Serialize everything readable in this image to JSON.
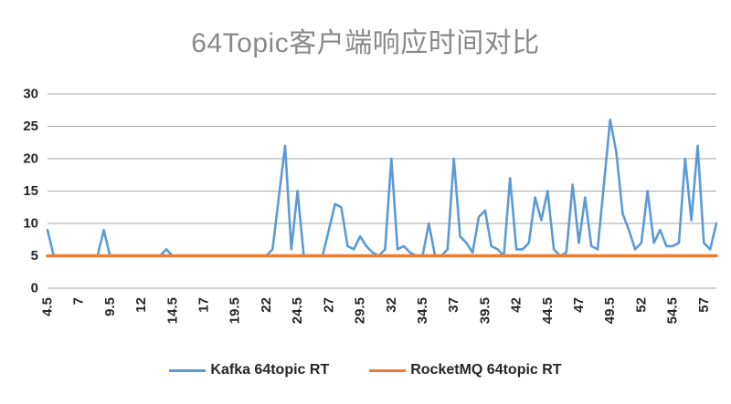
{
  "chart_data": {
    "type": "line",
    "title": "64Topic客户端响应时间对比",
    "xlabel": "",
    "ylabel": "",
    "ylim": [
      0,
      30
    ],
    "y_ticks": [
      0,
      5,
      10,
      15,
      20,
      25,
      30
    ],
    "grid": "horizontal-only",
    "gridline_color": "#A6A6A6",
    "legend_position": "bottom",
    "x_start": 4.5,
    "x_step": 0.5,
    "x_tick_every": 5,
    "x_tick_labels": [
      "4.5",
      "7",
      "9.5",
      "12",
      "14.5",
      "17",
      "19.5",
      "22",
      "24.5",
      "27",
      "29.5",
      "32",
      "34.5",
      "37",
      "39.5",
      "42",
      "44.5",
      "47",
      "49.5",
      "52",
      "54.5",
      "57"
    ],
    "series": [
      {
        "name": "Kafka 64topic RT",
        "color": "#5B9BD5",
        "values": [
          9,
          5,
          5,
          5,
          5,
          5,
          5,
          5,
          5,
          9,
          5,
          5,
          5,
          5,
          5,
          5,
          5,
          5,
          5,
          6,
          5,
          5,
          5,
          5,
          5,
          5,
          5,
          5,
          5,
          5,
          5,
          5,
          5,
          5,
          5,
          5,
          6,
          14,
          22,
          6,
          15,
          5,
          5,
          5,
          5,
          9,
          13,
          12.5,
          6.5,
          6,
          8,
          6.5,
          5.5,
          5,
          6,
          20,
          6,
          6.5,
          5.5,
          5,
          5,
          10,
          5,
          5,
          6,
          20,
          8,
          7,
          5.5,
          11,
          12,
          6.5,
          6,
          5,
          17,
          6,
          6,
          7,
          14,
          10.5,
          15,
          6,
          5,
          5.5,
          16,
          7,
          14,
          6.5,
          6,
          16,
          26,
          21,
          11.5,
          9,
          6,
          7,
          15,
          7,
          9,
          6.5,
          6.5,
          7,
          20,
          10.5,
          22,
          7,
          6,
          10
        ]
      },
      {
        "name": "RocketMQ 64topic RT",
        "color": "#ED7D31",
        "constant_value": 5
      }
    ]
  }
}
